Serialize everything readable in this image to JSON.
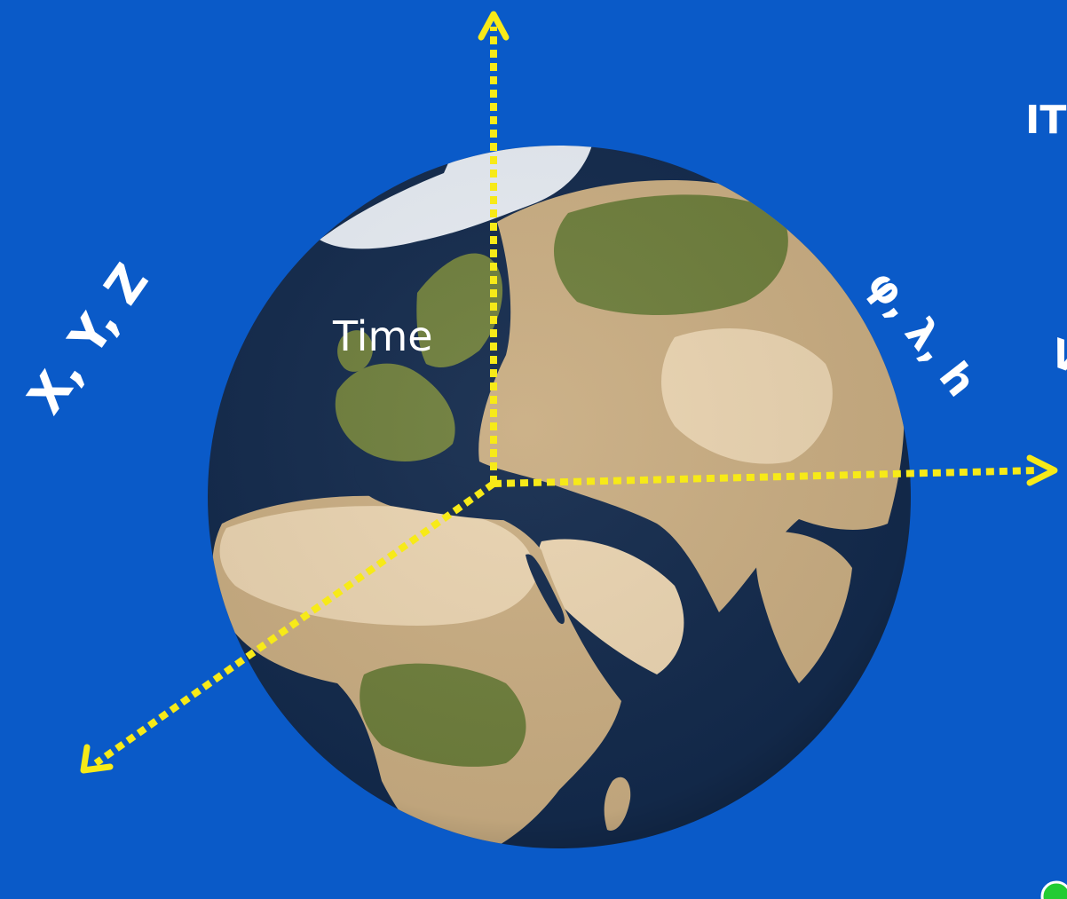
{
  "background_color": "#0a5ac8",
  "axis_color": "#f7ea18",
  "globe": {
    "ocean_color": "#132a4c",
    "land_color": "#c9ad82",
    "desert_color": "#e9d3b0",
    "vegetation_color": "#6e7e3c",
    "ice_color": "#e6ebf2"
  },
  "labels": {
    "time": "Time",
    "cartesian": "X, Y, Z",
    "geodetic": "φ, λ, h",
    "edge_top": "IT",
    "edge_mid": "V"
  },
  "indicator_color": "#22cc33"
}
